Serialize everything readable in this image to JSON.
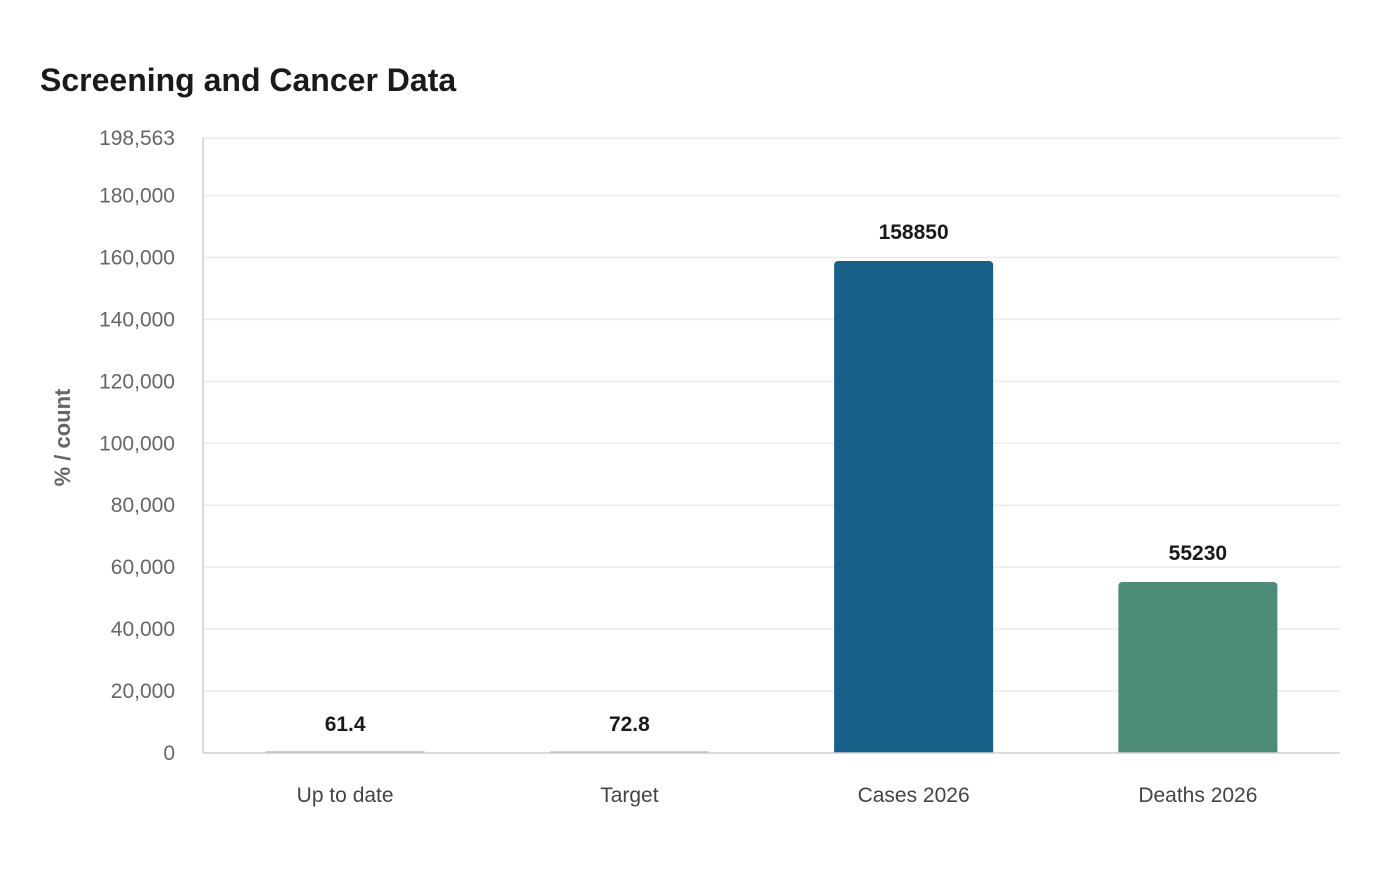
{
  "chart_data": {
    "type": "bar",
    "title": "Screening and Cancer Data",
    "xlabel": "",
    "ylabel": "% / count",
    "categories": [
      "Up to date",
      "Target",
      "Cases 2026",
      "Deaths 2026"
    ],
    "values": [
      61.4,
      72.8,
      158850,
      55230
    ],
    "data_labels": [
      "61.4",
      "72.8",
      "158850",
      "55230"
    ],
    "ylim": [
      0,
      198563
    ],
    "yticks": [
      0,
      20000,
      40000,
      60000,
      80000,
      100000,
      120000,
      140000,
      160000,
      180000,
      198563
    ],
    "ytick_labels": [
      "0",
      "20,000",
      "40,000",
      "60,000",
      "80,000",
      "100,000",
      "120,000",
      "140,000",
      "160,000",
      "180,000",
      "198,563"
    ],
    "bar_colors": [
      "#999999",
      "#aaaaaa",
      "#176087",
      "#4e8c7a"
    ],
    "grid": true,
    "legend": "none"
  }
}
